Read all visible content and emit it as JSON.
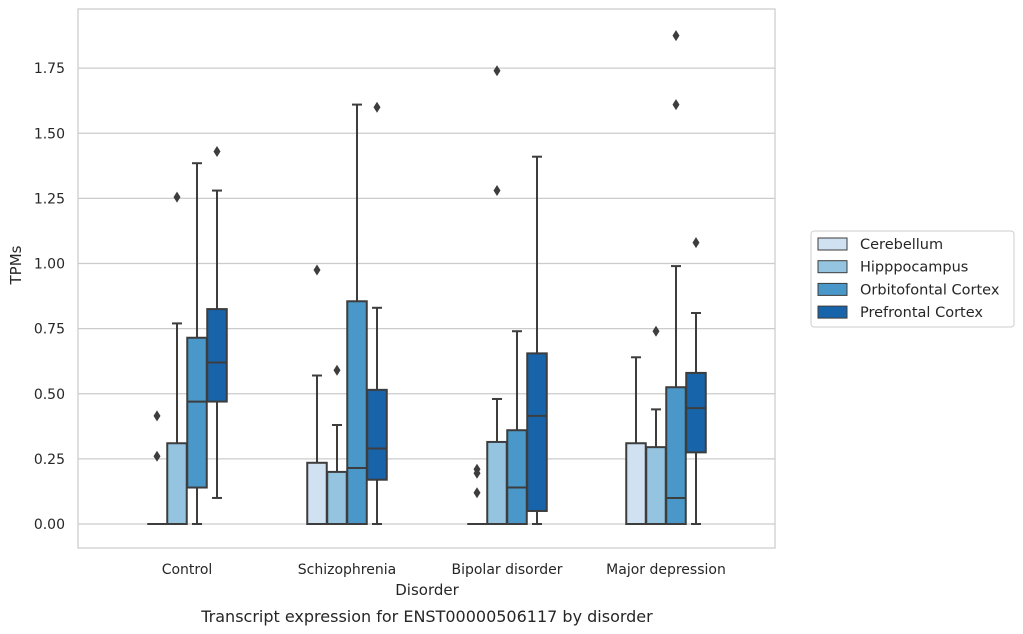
{
  "chart_data": {
    "type": "boxplot",
    "title": "",
    "caption": "Transcript expression for ENST00000506117 by disorder",
    "xlabel": "Disorder",
    "ylabel": "TPMs",
    "ylim": [
      -0.09,
      1.97
    ],
    "yticks": [
      0.0,
      0.25,
      0.5,
      0.75,
      1.0,
      1.25,
      1.5,
      1.75
    ],
    "ytick_labels": [
      "0.00",
      "0.25",
      "0.50",
      "0.75",
      "1.00",
      "1.25",
      "1.50",
      "1.75"
    ],
    "grid": "horizontal",
    "legend_position": "right",
    "categories": [
      "Control",
      "Schizophrenia",
      "Bipolar disorder",
      "Major depression"
    ],
    "series": [
      {
        "name": "Cerebellum",
        "color": "#d0e1f2",
        "boxes": [
          {
            "whislo": 0.0,
            "q1": 0.0,
            "med": 0.0,
            "q3": 0.0,
            "whishi": 0.0,
            "fliers": [
              0.415,
              0.26
            ]
          },
          {
            "whislo": 0.0,
            "q1": 0.0,
            "med": 0.0,
            "q3": 0.235,
            "whishi": 0.57,
            "fliers": [
              0.975
            ]
          },
          {
            "whislo": 0.0,
            "q1": 0.0,
            "med": 0.0,
            "q3": 0.0,
            "whishi": 0.0,
            "fliers": [
              0.21,
              0.195,
              0.12
            ]
          },
          {
            "whislo": 0.0,
            "q1": 0.0,
            "med": 0.0,
            "q3": 0.31,
            "whishi": 0.64,
            "fliers": []
          }
        ]
      },
      {
        "name": "Hipppocampus",
        "color": "#94c4df",
        "boxes": [
          {
            "whislo": 0.0,
            "q1": 0.0,
            "med": 0.0,
            "q3": 0.31,
            "whishi": 0.77,
            "fliers": [
              1.255
            ]
          },
          {
            "whislo": 0.0,
            "q1": 0.0,
            "med": 0.0,
            "q3": 0.2,
            "whishi": 0.38,
            "fliers": [
              0.59
            ]
          },
          {
            "whislo": 0.0,
            "q1": 0.0,
            "med": 0.0,
            "q3": 0.315,
            "whishi": 0.48,
            "fliers": [
              1.74,
              1.28
            ]
          },
          {
            "whislo": 0.0,
            "q1": 0.0,
            "med": 0.0,
            "q3": 0.295,
            "whishi": 0.44,
            "fliers": [
              0.74
            ]
          }
        ]
      },
      {
        "name": "Orbitofontal Cortex",
        "color": "#4a98c9",
        "boxes": [
          {
            "whislo": 0.0,
            "q1": 0.14,
            "med": 0.47,
            "q3": 0.715,
            "whishi": 1.385,
            "fliers": []
          },
          {
            "whislo": 0.0,
            "q1": 0.0,
            "med": 0.215,
            "q3": 0.855,
            "whishi": 1.61,
            "fliers": []
          },
          {
            "whislo": 0.0,
            "q1": 0.0,
            "med": 0.14,
            "q3": 0.36,
            "whishi": 0.74,
            "fliers": []
          },
          {
            "whislo": 0.0,
            "q1": 0.0,
            "med": 0.1,
            "q3": 0.525,
            "whishi": 0.99,
            "fliers": [
              1.875,
              1.61
            ]
          }
        ]
      },
      {
        "name": "Prefrontal Cortex",
        "color": "#1764ab",
        "boxes": [
          {
            "whislo": 0.1,
            "q1": 0.47,
            "med": 0.62,
            "q3": 0.825,
            "whishi": 1.28,
            "fliers": [
              1.43
            ]
          },
          {
            "whislo": 0.0,
            "q1": 0.17,
            "med": 0.29,
            "q3": 0.515,
            "whishi": 0.83,
            "fliers": [
              1.6
            ]
          },
          {
            "whislo": 0.0,
            "q1": 0.05,
            "med": 0.415,
            "q3": 0.655,
            "whishi": 1.41,
            "fliers": []
          },
          {
            "whislo": 0.0,
            "q1": 0.275,
            "med": 0.445,
            "q3": 0.58,
            "whishi": 0.81,
            "fliers": [
              1.08
            ]
          }
        ]
      }
    ]
  }
}
